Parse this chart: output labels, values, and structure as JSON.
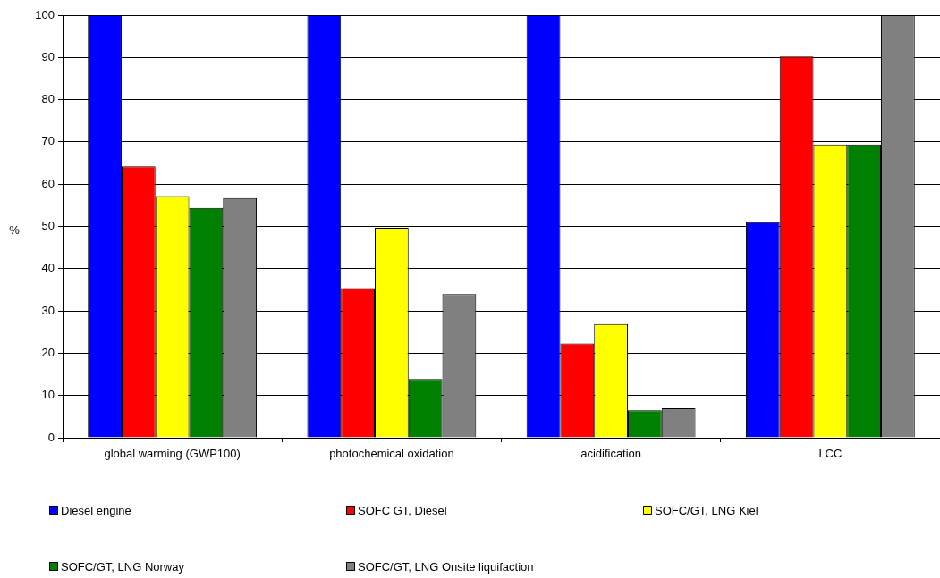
{
  "chart_data": {
    "type": "bar",
    "ylabel": "%",
    "categories": [
      "global warming (GWP100)",
      "photochemical oxidation",
      "acidification",
      "LCC"
    ],
    "series": [
      {
        "name": "Diesel engine",
        "color": "#0000ff",
        "values": [
          100,
          100,
          100,
          51.0
        ]
      },
      {
        "name": "SOFC GT, Diesel",
        "color": "#ff0000",
        "values": [
          64.2,
          35.4,
          22.3,
          90.2
        ]
      },
      {
        "name": "SOFC/GT, LNG Kiel",
        "color": "#ffff00",
        "values": [
          57.2,
          49.7,
          26.9,
          69.4
        ]
      },
      {
        "name": "SOFC/GT, LNG Norway",
        "color": "#008000",
        "values": [
          54.4,
          13.9,
          6.5,
          69.4
        ]
      },
      {
        "name": "SOFC/GT, LNG Onsite liquifaction",
        "color": "#808080",
        "values": [
          56.7,
          34.0,
          7.0,
          100
        ]
      }
    ],
    "ylim": [
      0,
      100
    ],
    "yticks": [
      0,
      10,
      20,
      30,
      40,
      50,
      60,
      70,
      80,
      90,
      100
    ],
    "grid": "y",
    "legend": "bottom"
  }
}
